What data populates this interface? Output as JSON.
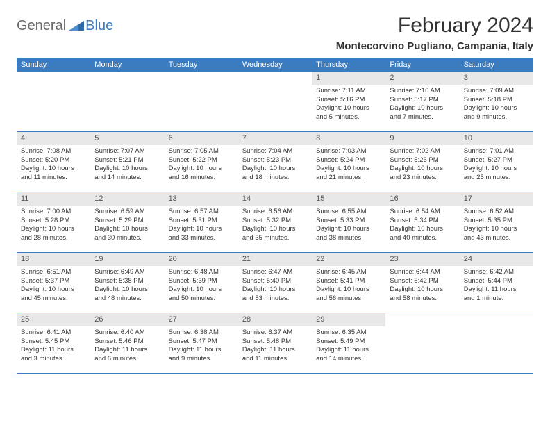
{
  "brand": {
    "general": "General",
    "blue": "Blue"
  },
  "title": "February 2024",
  "location": "Montecorvino Pugliano, Campania, Italy",
  "colors": {
    "header_bg": "#3b7bbf",
    "header_text": "#ffffff",
    "daynum_bg": "#e8e8e8",
    "border": "#3b7bbf",
    "text": "#333333",
    "logo_gray": "#6a6a6a",
    "logo_blue": "#3b7bbf",
    "page_bg": "#ffffff"
  },
  "weekdays": [
    "Sunday",
    "Monday",
    "Tuesday",
    "Wednesday",
    "Thursday",
    "Friday",
    "Saturday"
  ],
  "weeks": [
    [
      {
        "empty": true
      },
      {
        "empty": true
      },
      {
        "empty": true
      },
      {
        "empty": true
      },
      {
        "num": "1",
        "sunrise": "Sunrise: 7:11 AM",
        "sunset": "Sunset: 5:16 PM",
        "daylight1": "Daylight: 10 hours",
        "daylight2": "and 5 minutes."
      },
      {
        "num": "2",
        "sunrise": "Sunrise: 7:10 AM",
        "sunset": "Sunset: 5:17 PM",
        "daylight1": "Daylight: 10 hours",
        "daylight2": "and 7 minutes."
      },
      {
        "num": "3",
        "sunrise": "Sunrise: 7:09 AM",
        "sunset": "Sunset: 5:18 PM",
        "daylight1": "Daylight: 10 hours",
        "daylight2": "and 9 minutes."
      }
    ],
    [
      {
        "num": "4",
        "sunrise": "Sunrise: 7:08 AM",
        "sunset": "Sunset: 5:20 PM",
        "daylight1": "Daylight: 10 hours",
        "daylight2": "and 11 minutes."
      },
      {
        "num": "5",
        "sunrise": "Sunrise: 7:07 AM",
        "sunset": "Sunset: 5:21 PM",
        "daylight1": "Daylight: 10 hours",
        "daylight2": "and 14 minutes."
      },
      {
        "num": "6",
        "sunrise": "Sunrise: 7:05 AM",
        "sunset": "Sunset: 5:22 PM",
        "daylight1": "Daylight: 10 hours",
        "daylight2": "and 16 minutes."
      },
      {
        "num": "7",
        "sunrise": "Sunrise: 7:04 AM",
        "sunset": "Sunset: 5:23 PM",
        "daylight1": "Daylight: 10 hours",
        "daylight2": "and 18 minutes."
      },
      {
        "num": "8",
        "sunrise": "Sunrise: 7:03 AM",
        "sunset": "Sunset: 5:24 PM",
        "daylight1": "Daylight: 10 hours",
        "daylight2": "and 21 minutes."
      },
      {
        "num": "9",
        "sunrise": "Sunrise: 7:02 AM",
        "sunset": "Sunset: 5:26 PM",
        "daylight1": "Daylight: 10 hours",
        "daylight2": "and 23 minutes."
      },
      {
        "num": "10",
        "sunrise": "Sunrise: 7:01 AM",
        "sunset": "Sunset: 5:27 PM",
        "daylight1": "Daylight: 10 hours",
        "daylight2": "and 25 minutes."
      }
    ],
    [
      {
        "num": "11",
        "sunrise": "Sunrise: 7:00 AM",
        "sunset": "Sunset: 5:28 PM",
        "daylight1": "Daylight: 10 hours",
        "daylight2": "and 28 minutes."
      },
      {
        "num": "12",
        "sunrise": "Sunrise: 6:59 AM",
        "sunset": "Sunset: 5:29 PM",
        "daylight1": "Daylight: 10 hours",
        "daylight2": "and 30 minutes."
      },
      {
        "num": "13",
        "sunrise": "Sunrise: 6:57 AM",
        "sunset": "Sunset: 5:31 PM",
        "daylight1": "Daylight: 10 hours",
        "daylight2": "and 33 minutes."
      },
      {
        "num": "14",
        "sunrise": "Sunrise: 6:56 AM",
        "sunset": "Sunset: 5:32 PM",
        "daylight1": "Daylight: 10 hours",
        "daylight2": "and 35 minutes."
      },
      {
        "num": "15",
        "sunrise": "Sunrise: 6:55 AM",
        "sunset": "Sunset: 5:33 PM",
        "daylight1": "Daylight: 10 hours",
        "daylight2": "and 38 minutes."
      },
      {
        "num": "16",
        "sunrise": "Sunrise: 6:54 AM",
        "sunset": "Sunset: 5:34 PM",
        "daylight1": "Daylight: 10 hours",
        "daylight2": "and 40 minutes."
      },
      {
        "num": "17",
        "sunrise": "Sunrise: 6:52 AM",
        "sunset": "Sunset: 5:35 PM",
        "daylight1": "Daylight: 10 hours",
        "daylight2": "and 43 minutes."
      }
    ],
    [
      {
        "num": "18",
        "sunrise": "Sunrise: 6:51 AM",
        "sunset": "Sunset: 5:37 PM",
        "daylight1": "Daylight: 10 hours",
        "daylight2": "and 45 minutes."
      },
      {
        "num": "19",
        "sunrise": "Sunrise: 6:49 AM",
        "sunset": "Sunset: 5:38 PM",
        "daylight1": "Daylight: 10 hours",
        "daylight2": "and 48 minutes."
      },
      {
        "num": "20",
        "sunrise": "Sunrise: 6:48 AM",
        "sunset": "Sunset: 5:39 PM",
        "daylight1": "Daylight: 10 hours",
        "daylight2": "and 50 minutes."
      },
      {
        "num": "21",
        "sunrise": "Sunrise: 6:47 AM",
        "sunset": "Sunset: 5:40 PM",
        "daylight1": "Daylight: 10 hours",
        "daylight2": "and 53 minutes."
      },
      {
        "num": "22",
        "sunrise": "Sunrise: 6:45 AM",
        "sunset": "Sunset: 5:41 PM",
        "daylight1": "Daylight: 10 hours",
        "daylight2": "and 56 minutes."
      },
      {
        "num": "23",
        "sunrise": "Sunrise: 6:44 AM",
        "sunset": "Sunset: 5:42 PM",
        "daylight1": "Daylight: 10 hours",
        "daylight2": "and 58 minutes."
      },
      {
        "num": "24",
        "sunrise": "Sunrise: 6:42 AM",
        "sunset": "Sunset: 5:44 PM",
        "daylight1": "Daylight: 11 hours",
        "daylight2": "and 1 minute."
      }
    ],
    [
      {
        "num": "25",
        "sunrise": "Sunrise: 6:41 AM",
        "sunset": "Sunset: 5:45 PM",
        "daylight1": "Daylight: 11 hours",
        "daylight2": "and 3 minutes."
      },
      {
        "num": "26",
        "sunrise": "Sunrise: 6:40 AM",
        "sunset": "Sunset: 5:46 PM",
        "daylight1": "Daylight: 11 hours",
        "daylight2": "and 6 minutes."
      },
      {
        "num": "27",
        "sunrise": "Sunrise: 6:38 AM",
        "sunset": "Sunset: 5:47 PM",
        "daylight1": "Daylight: 11 hours",
        "daylight2": "and 9 minutes."
      },
      {
        "num": "28",
        "sunrise": "Sunrise: 6:37 AM",
        "sunset": "Sunset: 5:48 PM",
        "daylight1": "Daylight: 11 hours",
        "daylight2": "and 11 minutes."
      },
      {
        "num": "29",
        "sunrise": "Sunrise: 6:35 AM",
        "sunset": "Sunset: 5:49 PM",
        "daylight1": "Daylight: 11 hours",
        "daylight2": "and 14 minutes."
      },
      {
        "empty": true
      },
      {
        "empty": true
      }
    ]
  ]
}
